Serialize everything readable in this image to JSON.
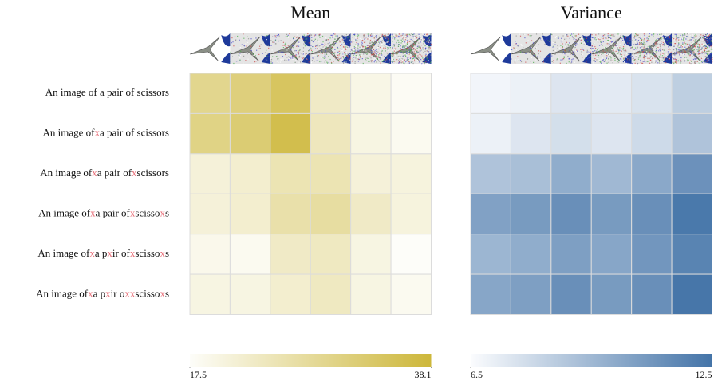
{
  "chart_data": [
    {
      "type": "heatmap",
      "title": "Mean",
      "rows": [
        [
          "An image of a pair of scissors"
        ],
        [
          "An image of",
          "x",
          "a pair of scissors"
        ],
        [
          "An image of",
          "x",
          "a pair of",
          "x",
          "scissors"
        ],
        [
          "An image of",
          "x",
          "a pair of",
          "x",
          "scisso",
          "x",
          "s"
        ],
        [
          "An image of",
          "x",
          "a p",
          "x",
          "ir of",
          "x",
          "scisso",
          "x",
          "s"
        ],
        [
          "An image of",
          "x",
          "a p",
          "x",
          "ir o",
          "xx",
          "scisso",
          "x",
          "s"
        ]
      ],
      "highlight_color": "#e8707a",
      "values": [
        [
          29,
          31,
          34,
          23,
          19.5,
          18
        ],
        [
          30,
          32,
          36,
          24,
          20,
          18.5
        ],
        [
          21,
          22,
          25,
          25,
          21,
          20.5
        ],
        [
          21,
          22,
          26,
          27,
          23,
          20.5
        ],
        [
          19,
          18.5,
          23,
          23.5,
          20,
          17.5
        ],
        [
          20,
          20,
          22,
          23.5,
          20,
          18.5
        ]
      ],
      "cmap": [
        "#fdfdf9",
        "#cdb73a"
      ],
      "clim": [
        17.5,
        38.1
      ],
      "cticks": [
        17.5,
        38.1
      ]
    },
    {
      "type": "heatmap",
      "title": "Variance",
      "values": [
        [
          6.8,
          7.0,
          7.5,
          7.3,
          7.6,
          8.5
        ],
        [
          7.0,
          7.5,
          7.8,
          7.5,
          8.0,
          9.0
        ],
        [
          9.0,
          9.2,
          10.0,
          9.5,
          10.2,
          11.2
        ],
        [
          10.5,
          10.8,
          11.3,
          10.8,
          11.3,
          12.3
        ],
        [
          9.6,
          10.0,
          10.6,
          10.3,
          11.0,
          11.8
        ],
        [
          10.3,
          10.6,
          11.3,
          10.8,
          11.3,
          12.4
        ]
      ],
      "cmap": [
        "#fbfcfe",
        "#4474a8"
      ],
      "clim": [
        6.5,
        12.5
      ],
      "cticks": [
        6.5,
        12.5
      ]
    }
  ]
}
